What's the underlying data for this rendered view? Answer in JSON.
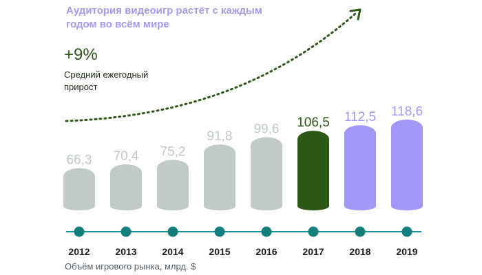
{
  "headline": "Аудитория видеоигр растёт с каждым годом во всём мире",
  "growth": {
    "value": "+9%",
    "label": "Средний ежегодный прирост"
  },
  "footnote": "Объём игрового рынка, млрд. $",
  "colors": {
    "historical": "#c1cbc6",
    "historical_label": "#bfc8c3",
    "current": "#2c5716",
    "forecast": "#a197f7",
    "axis": "#1a9196",
    "marker": "#137f7b",
    "headline": "#a499f3",
    "growth": "#2c5716"
  },
  "chart_data": {
    "type": "bar",
    "categories": [
      "2012",
      "2013",
      "2014",
      "2015",
      "2016",
      "2017",
      "2018",
      "2019"
    ],
    "values": [
      66.3,
      70.4,
      75.2,
      91.8,
      99.6,
      106.5,
      112.5,
      118.6
    ],
    "value_labels": [
      "66,3",
      "70,4",
      "75,2",
      "91,8",
      "99,6",
      "106,5",
      "112,5",
      "118,6"
    ],
    "bar_groups": [
      "historical",
      "historical",
      "historical",
      "historical",
      "historical",
      "current",
      "forecast",
      "forecast"
    ],
    "title": "",
    "xlabel": "Объём игрового рынка, млрд. $",
    "ylabel": "",
    "trend": "dotted upward arrow",
    "grid": false,
    "legend": "none"
  }
}
